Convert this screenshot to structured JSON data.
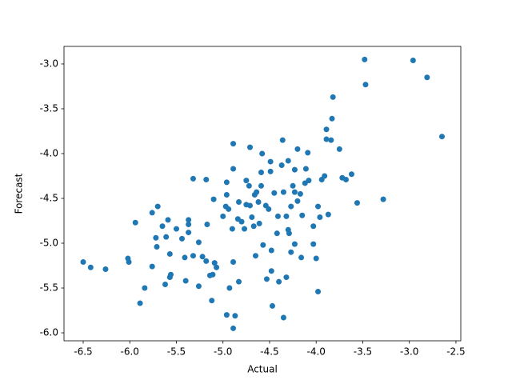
{
  "chart_data": {
    "type": "scatter",
    "xlabel": "Actual",
    "ylabel": "Forecast",
    "color": "#1f77b4",
    "xlim": [
      -6.706,
      -2.448
    ],
    "ylim": [
      -6.089,
      -2.804
    ],
    "xticks": [
      -6.5,
      {
        "value": -6,
        "label": "-6.0"
      },
      -5.5,
      {
        "value": -5,
        "label": "-5.0"
      },
      -4.5,
      {
        "value": -4,
        "label": "-4.0"
      },
      -3.5,
      {
        "value": -3,
        "label": "-3.0"
      },
      -2.5
    ],
    "yticks": [
      {
        "value": -6,
        "label": "-6.0"
      },
      -5.5,
      {
        "value": -5,
        "label": "-5.0"
      },
      -4.5,
      {
        "value": -4,
        "label": "-4.0"
      },
      -3.5,
      {
        "value": -3,
        "label": "-3.0"
      }
    ],
    "x": [
      -6.5,
      -6.42,
      -6.26,
      -6.01,
      -6.02,
      -5.94,
      -5.89,
      -5.84,
      -5.76,
      -5.76,
      -5.72,
      -5.71,
      -5.7,
      -5.65,
      -5.61,
      -5.59,
      -5.62,
      -5.57,
      -5.56,
      -5.57,
      -5.5,
      -5.44,
      -5.41,
      -5.4,
      -5.37,
      -5.37,
      -5.37,
      -5.32,
      -5.32,
      -5.26,
      -5.26,
      -5.22,
      -5.18,
      -5.18,
      -5.17,
      -5.14,
      -5.12,
      -5.11,
      -5.1,
      -5.09,
      -5.07,
      -5.0,
      -4.97,
      -4.96,
      -4.96,
      -4.96,
      -4.94,
      -4.93,
      -4.9,
      -4.89,
      -4.89,
      -4.89,
      -4.89,
      -4.87,
      -4.84,
      -4.83,
      -4.83,
      -4.8,
      -4.77,
      -4.75,
      -4.75,
      -4.72,
      -4.71,
      -4.71,
      -4.69,
      -4.67,
      -4.66,
      -4.65,
      -4.64,
      -4.62,
      -4.61,
      -4.59,
      -4.59,
      -4.58,
      -4.57,
      -4.54,
      -4.53,
      -4.51,
      -4.49,
      -4.49,
      -4.48,
      -4.48,
      -4.47,
      -4.45,
      -4.42,
      -4.41,
      -4.4,
      -4.37,
      -4.36,
      -4.35,
      -4.35,
      -4.32,
      -4.32,
      -4.3,
      -4.3,
      -4.29,
      -4.27,
      -4.27,
      -4.25,
      -4.23,
      -4.23,
      -4.23,
      -4.2,
      -4.2,
      -4.17,
      -4.16,
      -4.15,
      -4.12,
      -4.11,
      -4.09,
      -4.08,
      -4.03,
      -4.03,
      -4.0,
      -3.98,
      -3.98,
      -3.96,
      -3.94,
      -3.91,
      -3.89,
      -3.89,
      -3.87,
      -3.84,
      -3.83,
      -3.82,
      -3.75,
      -3.72,
      -3.68,
      -3.62,
      -3.56,
      -3.48,
      -3.47,
      -3.28,
      -2.96,
      -2.81,
      -2.65
    ],
    "y": [
      -5.21,
      -5.27,
      -5.29,
      -5.21,
      -5.17,
      -4.77,
      -5.67,
      -5.5,
      -4.66,
      -5.26,
      -4.94,
      -5.04,
      -4.59,
      -4.81,
      -4.93,
      -4.74,
      -5.46,
      -5.38,
      -5.35,
      -5.12,
      -4.84,
      -4.95,
      -5.16,
      -5.42,
      -4.79,
      -4.74,
      -4.88,
      -5.14,
      -4.28,
      -4.99,
      -5.48,
      -5.15,
      -4.29,
      -5.2,
      -4.79,
      -5.36,
      -5.64,
      -5.35,
      -4.51,
      -5.22,
      -5.27,
      -4.7,
      -4.59,
      -4.32,
      -4.46,
      -5.8,
      -4.62,
      -5.5,
      -4.84,
      -3.89,
      -4.17,
      -5.21,
      -5.95,
      -5.81,
      -4.73,
      -4.54,
      -5.43,
      -4.76,
      -4.84,
      -4.3,
      -4.57,
      -4.36,
      -3.93,
      -4.58,
      -4.71,
      -4.81,
      -4.46,
      -5.14,
      -4.43,
      -4.54,
      -4.78,
      -4.21,
      -4.36,
      -4.0,
      -5.02,
      -4.58,
      -5.4,
      -4.62,
      -4.2,
      -4.09,
      -5.08,
      -5.31,
      -5.7,
      -4.44,
      -4.89,
      -4.7,
      -5.43,
      -4.13,
      -3.85,
      -4.43,
      -5.83,
      -4.7,
      -5.38,
      -4.08,
      -4.85,
      -4.89,
      -4.59,
      -5.1,
      -4.36,
      -4.18,
      -4.43,
      -5.01,
      -4.53,
      -3.95,
      -4.45,
      -5.16,
      -4.69,
      -4.33,
      -4.17,
      -3.99,
      -4.3,
      -4.81,
      -5.01,
      -5.17,
      -4.59,
      -5.54,
      -4.71,
      -4.29,
      -4.25,
      -3.73,
      -3.84,
      -4.68,
      -3.85,
      -3.61,
      -3.37,
      -3.95,
      -4.27,
      -4.29,
      -4.23,
      -4.55,
      -2.95,
      -3.23,
      -4.51,
      -2.96,
      -3.15,
      -3.81
    ]
  }
}
